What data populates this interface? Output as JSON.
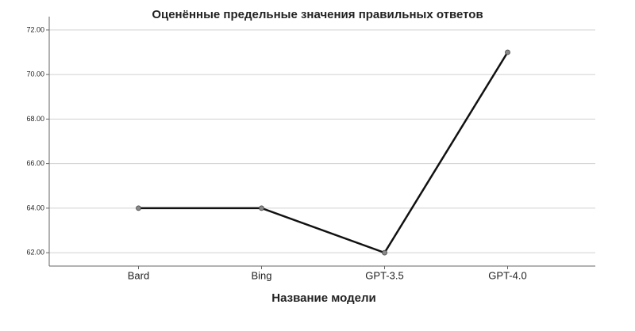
{
  "chart_data": {
    "type": "line",
    "title": "Оценённые предельные значения правильных ответов",
    "x_label": "Название модели",
    "categories": [
      "Bard",
      "Bing",
      "GPT-3.5",
      "GPT-4.0"
    ],
    "values": [
      64,
      64,
      62,
      71
    ],
    "color": "#111111",
    "marker_color": "#888888",
    "ylim": [
      61.4,
      72.6
    ],
    "yticks": [
      {
        "value": 62,
        "label": "62.00"
      },
      {
        "value": 64,
        "label": "64.00"
      },
      {
        "value": 66,
        "label": "66.00"
      },
      {
        "value": 68,
        "label": "68.00"
      },
      {
        "value": 70,
        "label": "70.00"
      },
      {
        "value": 72,
        "label": "72.00"
      }
    ],
    "grid": true
  }
}
